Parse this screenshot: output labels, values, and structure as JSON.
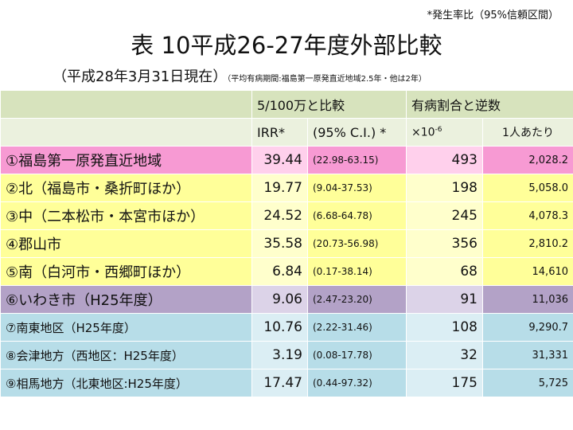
{
  "note": "*発生率比（95%信頼区間）",
  "title": "表 10平成26-27年度外部比較",
  "subtitle": "（平成28年3月31日現在）",
  "subtitle_note": "（平均有病期間:福島第一原発直近地域2.5年・他は2年）",
  "header": {
    "group1": "5/100万と比較",
    "group2": "有病割合と逆数",
    "irr": "IRR*",
    "ci": "(95% C.I.) *",
    "per_prefix": "×10",
    "per_exp": "-6",
    "inverse": "1人あたり"
  },
  "colors": {
    "fukushima_daiichi": "#f79ad3",
    "ken_region": "#ffff99",
    "iwaki": "#b3a2c7",
    "other_prefecture": "#b7dde8",
    "header_dark": "#d7e3bd",
    "header_light": "#ebf1de"
  },
  "rows": [
    {
      "name": "①福島第一原発直近地域",
      "irr": "39.44",
      "ci": "(22.98-63.15)",
      "per": "493",
      "inverse": "2,028.2"
    },
    {
      "name": "②北（福島市・桑折町ほか）",
      "irr": "19.77",
      "ci": "(9.04-37.53)",
      "per": "198",
      "inverse": "5,058.0"
    },
    {
      "name": "③中（二本松市・本宮市ほか）",
      "irr": "24.52",
      "ci": "(6.68-64.78)",
      "per": "245",
      "inverse": "4,078.3"
    },
    {
      "name": "④郡山市",
      "irr": "35.58",
      "ci": "(20.73-56.98)",
      "per": "356",
      "inverse": "2,810.2"
    },
    {
      "name": "⑤南（白河市・西郷町ほか）",
      "irr": "6.84",
      "ci": "(0.17-38.14)",
      "per": "68",
      "inverse": "14,610"
    },
    {
      "name": "⑥いわき市（H25年度）",
      "irr": "9.06",
      "ci": "(2.47-23.20)",
      "per": "91",
      "inverse": "11,036"
    },
    {
      "name": "⑦南東地区（H25年度）",
      "irr": "10.76",
      "ci": "(2.22-31.46)",
      "per": "108",
      "inverse": "9,290.7"
    },
    {
      "name": "⑧会津地方（西地区：H25年度）",
      "irr": "3.19",
      "ci": "(0.08-17.78)",
      "per": "32",
      "inverse": "31,331"
    },
    {
      "name": "⑨相馬地方（北東地区:H25年度）",
      "irr": "17.47",
      "ci": "(0.44-97.32)",
      "per": "175",
      "inverse": "5,725"
    }
  ]
}
